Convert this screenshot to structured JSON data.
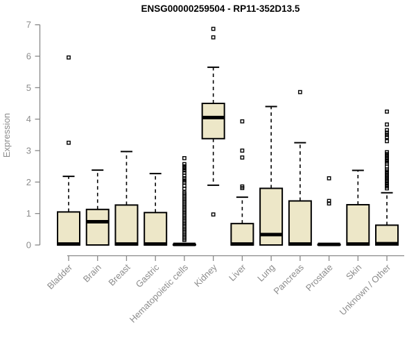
{
  "chart_data": {
    "type": "boxplot",
    "title": "ENSG00000259504 - RP11-352D13.5",
    "xlabel": "",
    "ylabel": "Expression",
    "ylim": [
      0,
      7
    ],
    "yticks": [
      0,
      1,
      2,
      3,
      4,
      5,
      6,
      7
    ],
    "grid": false,
    "legend": false,
    "x_label_rotation_deg": 45,
    "categories": [
      "Bladder",
      "Brain",
      "Breast",
      "Gastric",
      "Hematopoietic cells",
      "Kidney",
      "Liver",
      "Lung",
      "Pancreas",
      "Prostate",
      "Skin",
      "Unknown / Other"
    ],
    "boxes": [
      {
        "label": "Bladder",
        "q1": 0,
        "median": 0.03,
        "q3": 1.05,
        "whisker_low": 0,
        "whisker_high": 2.18,
        "outliers": [
          5.96,
          3.25
        ]
      },
      {
        "label": "Brain",
        "q1": 0,
        "median": 0.74,
        "q3": 1.13,
        "whisker_low": 0,
        "whisker_high": 2.38,
        "outliers": []
      },
      {
        "label": "Breast",
        "q1": 0,
        "median": 0.03,
        "q3": 1.27,
        "whisker_low": 0,
        "whisker_high": 2.97,
        "outliers": []
      },
      {
        "label": "Gastric",
        "q1": 0,
        "median": 0.03,
        "q3": 1.03,
        "whisker_low": 0,
        "whisker_high": 2.27,
        "outliers": []
      },
      {
        "label": "Hematopoietic cells",
        "q1": 0,
        "median": 0.02,
        "q3": 0.02,
        "whisker_low": 0,
        "whisker_high": 0.02,
        "outliers": [
          2.76,
          2.57,
          2.5,
          2.44,
          2.37,
          2.3,
          2.2,
          2.12,
          2.05,
          1.99,
          1.88,
          1.79,
          1.66,
          1.61,
          1.56,
          1.51,
          1.46,
          1.41,
          1.36,
          1.31,
          1.26,
          1.21,
          1.16,
          1.11,
          1.06,
          1.01,
          0.96,
          0.91,
          0.86,
          0.81,
          0.76,
          0.71,
          0.66,
          0.61,
          0.56,
          0.51,
          0.46,
          0.41,
          0.36,
          0.31,
          0.26,
          0.21,
          0.16
        ]
      },
      {
        "label": "Kidney",
        "q1": 3.38,
        "median": 4.05,
        "q3": 4.5,
        "whisker_low": 1.9,
        "whisker_high": 5.65,
        "outliers": [
          6.87,
          6.6,
          0.97
        ]
      },
      {
        "label": "Liver",
        "q1": 0,
        "median": 0.03,
        "q3": 0.68,
        "whisker_low": 0,
        "whisker_high": 1.52,
        "outliers": [
          3.93,
          3.0,
          2.78,
          1.86,
          1.81
        ]
      },
      {
        "label": "Lung",
        "q1": 0,
        "median": 0.33,
        "q3": 1.8,
        "whisker_low": 0,
        "whisker_high": 4.4,
        "outliers": []
      },
      {
        "label": "Pancreas",
        "q1": 0,
        "median": 0.03,
        "q3": 1.4,
        "whisker_low": 0,
        "whisker_high": 3.25,
        "outliers": [
          4.86
        ]
      },
      {
        "label": "Prostate",
        "q1": 0,
        "median": 0.02,
        "q3": 0.02,
        "whisker_low": 0,
        "whisker_high": 0.02,
        "outliers": [
          2.12,
          1.4,
          1.32
        ]
      },
      {
        "label": "Skin",
        "q1": 0,
        "median": 0.03,
        "q3": 1.28,
        "whisker_low": 0,
        "whisker_high": 2.37,
        "outliers": []
      },
      {
        "label": "Unknown / Other",
        "q1": 0,
        "median": 0.04,
        "q3": 0.63,
        "whisker_low": 0,
        "whisker_high": 1.66,
        "outliers": [
          4.24,
          3.83,
          3.65,
          3.57,
          3.5,
          3.43,
          3.3,
          2.95,
          2.89,
          2.83,
          2.77,
          2.71,
          2.65,
          2.59,
          2.49,
          2.4,
          2.34,
          2.28,
          2.22,
          2.16,
          2.1,
          2.04,
          1.98,
          1.92,
          1.86,
          1.8
        ]
      }
    ],
    "colors": {
      "box_fill": "#EDE7C8",
      "box_border": "#000000",
      "median": "#000000",
      "whisker": "#000000",
      "outlier": "#000000",
      "axis": "#888888",
      "tick_label": "#8C8C8C",
      "axis_label": "#8C8C8C",
      "title": "#000000",
      "background": "#FFFFFF"
    }
  }
}
